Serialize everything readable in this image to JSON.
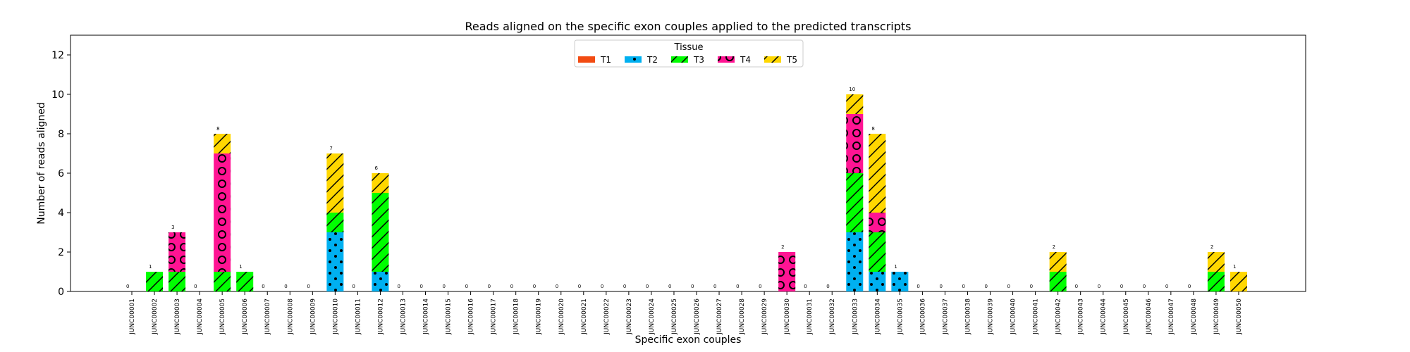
{
  "chart_data": {
    "type": "bar",
    "stacked": true,
    "title": "Reads aligned on the specific exon couples applied to the predicted transcripts",
    "xlabel": "Specific exon couples",
    "ylabel": "Number of reads aligned",
    "ylim": [
      0,
      13
    ],
    "yticks": [
      0,
      2,
      4,
      6,
      8,
      10,
      12
    ],
    "grid": false,
    "legend": {
      "title": "Tissue",
      "placement": "top-center"
    },
    "categories": [
      "JUNC00001",
      "JUNC00002",
      "JUNC00003",
      "JUNC00004",
      "JUNC00005",
      "JUNC00006",
      "JUNC00007",
      "JUNC00008",
      "JUNC00009",
      "JUNC00010",
      "JUNC00011",
      "JUNC00012",
      "JUNC00013",
      "JUNC00014",
      "JUNC00015",
      "JUNC00016",
      "JUNC00017",
      "JUNC00018",
      "JUNC00019",
      "JUNC00020",
      "JUNC00021",
      "JUNC00022",
      "JUNC00023",
      "JUNC00024",
      "JUNC00025",
      "JUNC00026",
      "JUNC00027",
      "JUNC00028",
      "JUNC00029",
      "JUNC00030",
      "JUNC00031",
      "JUNC00032",
      "JUNC00033",
      "JUNC00034",
      "JUNC00035",
      "JUNC00036",
      "JUNC00037",
      "JUNC00038",
      "JUNC00039",
      "JUNC00040",
      "JUNC00041",
      "JUNC00042",
      "JUNC00043",
      "JUNC00044",
      "JUNC00045",
      "JUNC00046",
      "JUNC00047",
      "JUNC00048",
      "JUNC00049",
      "JUNC00050"
    ],
    "series": [
      {
        "name": "T1",
        "color": "#f24b12",
        "pattern": "solid",
        "values": [
          0,
          0,
          0,
          0,
          0,
          0,
          0,
          0,
          0,
          0,
          0,
          0,
          0,
          0,
          0,
          0,
          0,
          0,
          0,
          0,
          0,
          0,
          0,
          0,
          0,
          0,
          0,
          0,
          0,
          0,
          0,
          0,
          0,
          0,
          0,
          0,
          0,
          0,
          0,
          0,
          0,
          0,
          0,
          0,
          0,
          0,
          0,
          0,
          0,
          0
        ]
      },
      {
        "name": "T2",
        "color": "#00b0f0",
        "pattern": "dots",
        "values": [
          0,
          0,
          0,
          0,
          0,
          0,
          0,
          0,
          0,
          3,
          0,
          1,
          0,
          0,
          0,
          0,
          0,
          0,
          0,
          0,
          0,
          0,
          0,
          0,
          0,
          0,
          0,
          0,
          0,
          0,
          0,
          0,
          3,
          1,
          1,
          0,
          0,
          0,
          0,
          0,
          0,
          0,
          0,
          0,
          0,
          0,
          0,
          0,
          0,
          0
        ]
      },
      {
        "name": "T3",
        "color": "#00ff00",
        "pattern": "slash",
        "values": [
          0,
          1,
          1,
          0,
          1,
          1,
          0,
          0,
          0,
          1,
          0,
          4,
          0,
          0,
          0,
          0,
          0,
          0,
          0,
          0,
          0,
          0,
          0,
          0,
          0,
          0,
          0,
          0,
          0,
          0,
          0,
          0,
          3,
          2,
          0,
          0,
          0,
          0,
          0,
          0,
          0,
          1,
          0,
          0,
          0,
          0,
          0,
          0,
          1,
          0
        ]
      },
      {
        "name": "T4",
        "color": "#ff1493",
        "pattern": "circles",
        "values": [
          0,
          0,
          2,
          0,
          6,
          0,
          0,
          0,
          0,
          0,
          0,
          0,
          0,
          0,
          0,
          0,
          0,
          0,
          0,
          0,
          0,
          0,
          0,
          0,
          0,
          0,
          0,
          0,
          0,
          2,
          0,
          0,
          3,
          1,
          0,
          0,
          0,
          0,
          0,
          0,
          0,
          0,
          0,
          0,
          0,
          0,
          0,
          0,
          0,
          0
        ]
      },
      {
        "name": "T5",
        "color": "#ffd700",
        "pattern": "slash",
        "values": [
          0,
          0,
          0,
          0,
          1,
          0,
          0,
          0,
          0,
          3,
          0,
          1,
          0,
          0,
          0,
          0,
          0,
          0,
          0,
          0,
          0,
          0,
          0,
          0,
          0,
          0,
          0,
          0,
          0,
          0,
          0,
          0,
          1,
          4,
          0,
          0,
          0,
          0,
          0,
          0,
          0,
          1,
          0,
          0,
          0,
          0,
          0,
          0,
          1,
          1
        ]
      }
    ],
    "totals": [
      0,
      1,
      3,
      0,
      8,
      1,
      0,
      0,
      0,
      7,
      0,
      6,
      0,
      0,
      0,
      0,
      0,
      0,
      0,
      0,
      0,
      0,
      0,
      0,
      0,
      0,
      0,
      0,
      0,
      2,
      0,
      0,
      10,
      8,
      1,
      0,
      0,
      0,
      0,
      0,
      0,
      2,
      0,
      0,
      0,
      0,
      0,
      0,
      2,
      1
    ]
  }
}
